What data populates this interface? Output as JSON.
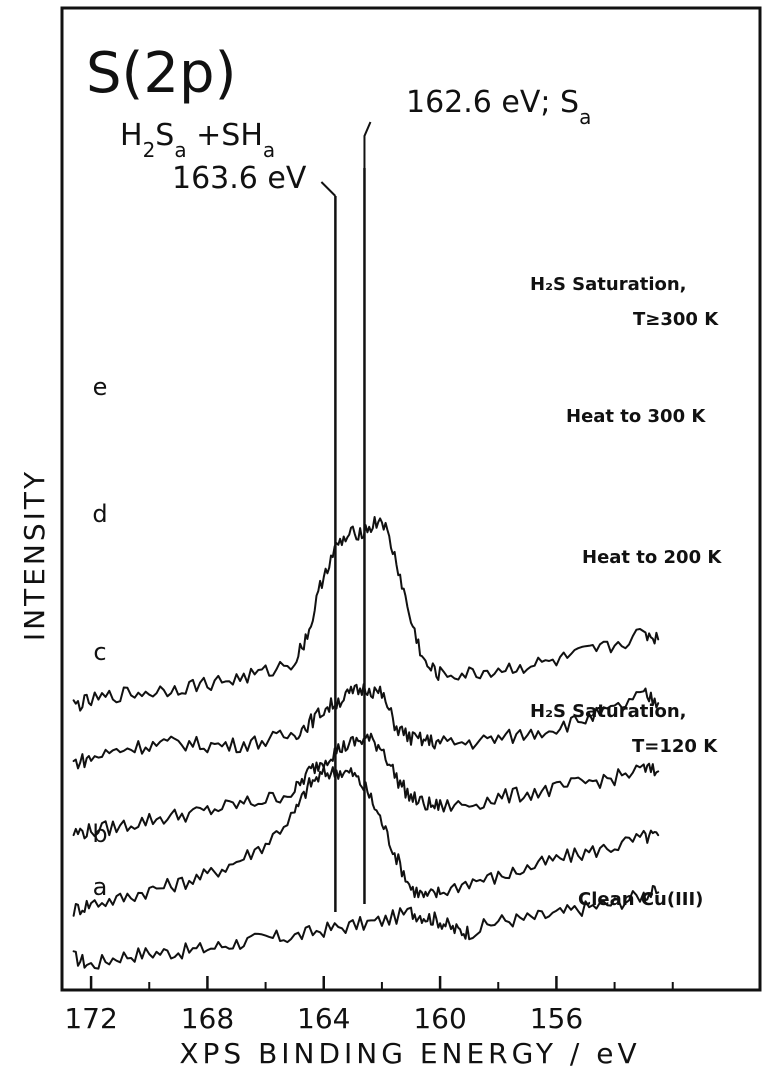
{
  "chart_data": {
    "type": "line",
    "title": "S(2p)",
    "xlabel": "XPS BINDING ENERGY / eV",
    "ylabel": "INTENSITY",
    "x_reversed": true,
    "xlim": [
      173,
      149
    ],
    "xticks": [
      172,
      168,
      164,
      160,
      156
    ],
    "y_units": "arbitrary (offset traces, no tick labels)",
    "reference_lines": [
      {
        "energy": 163.6,
        "label_main": "H",
        "label_sub1": "2",
        "label_mid": "S",
        "label_sub2": "a",
        "label_plus": " +SH",
        "label_sub3": "a",
        "label_energy": "163.6 eV"
      },
      {
        "energy": 162.6,
        "label_main": "162.6 eV; S",
        "label_sub": "a"
      }
    ],
    "series": [
      {
        "name": "a",
        "condition": "Clean Cu(III)",
        "condition_lines": [
          "Clean Cu(III)"
        ],
        "baseline": 0.0,
        "x": [
          172.6,
          172.0,
          171.0,
          170.0,
          169.0,
          168.0,
          167.0,
          166.0,
          165.0,
          164.0,
          163.0,
          162.0,
          161.0,
          160.5,
          160.0,
          159.5,
          159.0,
          158.0,
          157.0,
          156.0,
          155.0,
          154.0,
          153.0,
          152.5
        ],
        "y": [
          0.35,
          0.0,
          0.4,
          0.55,
          0.6,
          0.75,
          1.0,
          1.2,
          1.3,
          1.6,
          1.8,
          2.0,
          2.4,
          2.2,
          2.0,
          1.6,
          1.5,
          2.0,
          2.1,
          2.3,
          2.6,
          2.8,
          3.2,
          3.3
        ]
      },
      {
        "name": "b",
        "condition": "H2S Saturation, T=120 K",
        "condition_lines": [
          "H₂S Saturation,",
          "T=120 K"
        ],
        "baseline": 2.5,
        "x": [
          172.6,
          172.0,
          171.0,
          170.0,
          169.0,
          168.0,
          167.0,
          166.0,
          165.0,
          164.5,
          164.0,
          163.5,
          163.0,
          162.5,
          162.0,
          161.5,
          161.0,
          160.5,
          160.0,
          159.0,
          158.0,
          157.0,
          156.0,
          155.0,
          154.0,
          153.0,
          152.5
        ],
        "y": [
          0.0,
          0.3,
          0.5,
          0.9,
          1.2,
          1.6,
          2.2,
          3.0,
          4.4,
          5.7,
          6.2,
          6.3,
          6.2,
          5.4,
          4.0,
          2.4,
          1.0,
          0.6,
          0.8,
          1.3,
          1.5,
          1.9,
          2.3,
          2.6,
          2.9,
          3.3,
          3.4
        ]
      },
      {
        "name": "c",
        "condition": "Heat to 200 K",
        "condition_lines": [
          "Heat to 200 K"
        ],
        "baseline": 6.0,
        "x": [
          172.6,
          172.0,
          171.0,
          170.0,
          169.0,
          168.0,
          167.0,
          166.0,
          165.0,
          164.5,
          164.0,
          163.5,
          163.0,
          162.5,
          162.0,
          161.5,
          161.0,
          160.5,
          160.0,
          159.0,
          158.0,
          157.0,
          156.0,
          155.0,
          154.0,
          153.0,
          152.5
        ],
        "y": [
          0.0,
          0.1,
          0.3,
          0.6,
          0.8,
          1.0,
          1.3,
          1.5,
          1.9,
          2.8,
          3.3,
          3.8,
          4.1,
          4.3,
          3.9,
          2.5,
          1.6,
          1.3,
          1.2,
          1.3,
          1.6,
          1.8,
          2.0,
          2.3,
          2.5,
          2.9,
          2.8
        ]
      },
      {
        "name": "d",
        "condition": "Heat to 300 K",
        "condition_lines": [
          "Heat to 300 K"
        ],
        "baseline": 9.0,
        "x": [
          172.6,
          172.0,
          171.0,
          170.0,
          169.0,
          168.0,
          167.0,
          166.0,
          165.0,
          164.5,
          164.0,
          163.5,
          163.0,
          162.5,
          162.0,
          161.5,
          161.0,
          160.5,
          160.0,
          159.0,
          158.0,
          157.0,
          156.0,
          155.0,
          154.0,
          153.0,
          152.5
        ],
        "y": [
          0.2,
          0.4,
          0.8,
          1.0,
          1.1,
          1.0,
          1.0,
          1.2,
          1.5,
          2.0,
          2.6,
          3.0,
          3.4,
          3.6,
          3.3,
          1.8,
          1.3,
          1.2,
          1.1,
          1.1,
          1.3,
          1.5,
          1.8,
          2.2,
          2.6,
          3.3,
          2.9
        ]
      },
      {
        "name": "e",
        "condition": "H2S Saturation, T≥300 K",
        "condition_lines": [
          "H₂S Saturation,",
          "T≥300 K"
        ],
        "baseline": 11.8,
        "x": [
          172.6,
          172.0,
          171.0,
          170.0,
          169.0,
          168.0,
          167.0,
          166.0,
          165.0,
          164.5,
          164.0,
          163.5,
          163.0,
          162.5,
          162.0,
          161.5,
          161.0,
          160.5,
          160.0,
          159.0,
          158.0,
          157.0,
          156.0,
          155.0,
          154.0,
          153.0,
          152.5
        ],
        "y": [
          0.0,
          0.2,
          0.5,
          0.6,
          0.8,
          1.0,
          1.2,
          1.5,
          2.0,
          3.4,
          6.0,
          7.3,
          7.8,
          8.0,
          8.5,
          6.5,
          3.8,
          1.8,
          1.4,
          1.4,
          1.6,
          1.8,
          2.0,
          2.4,
          2.7,
          3.3,
          3.0
        ]
      }
    ]
  }
}
